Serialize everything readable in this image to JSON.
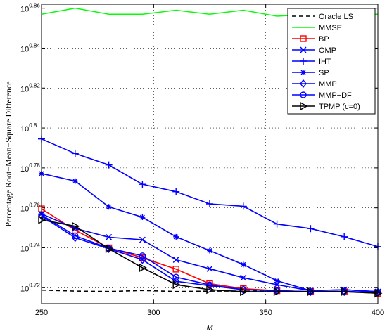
{
  "chart_data": {
    "type": "line",
    "xlabel": "M",
    "ylabel": "Percentage Root−Mean−Square Difference",
    "xlim": [
      250,
      400
    ],
    "x_ticks": [
      "250",
      "300",
      "350",
      "400"
    ],
    "y_scale": "log10",
    "ylim_exponent": [
      0.712,
      0.862
    ],
    "y_ticks": [
      {
        "base": "10",
        "exp": "0.72",
        "value": 0.72
      },
      {
        "base": "10",
        "exp": "0.74",
        "value": 0.74
      },
      {
        "base": "10",
        "exp": "0.76",
        "value": 0.76
      },
      {
        "base": "10",
        "exp": "0.78",
        "value": 0.78
      },
      {
        "base": "10",
        "exp": "0.8",
        "value": 0.8
      },
      {
        "base": "10",
        "exp": "0.82",
        "value": 0.82
      },
      {
        "base": "10",
        "exp": "0.84",
        "value": 0.84
      },
      {
        "base": "10",
        "exp": "0.86",
        "value": 0.86
      }
    ],
    "grid": true,
    "legend_position": "top-right",
    "x": [
      250,
      265,
      280,
      295,
      310,
      325,
      340,
      355,
      370,
      385,
      400
    ],
    "series": [
      {
        "name": "Oracle LS",
        "color": "#000000",
        "dash": "6,4",
        "marker": "none",
        "values": [
          0.7188,
          0.7183,
          0.7181,
          0.7186,
          0.7181,
          0.7183,
          0.7183,
          0.7181,
          0.7181,
          0.718,
          0.7178
        ]
      },
      {
        "name": "MMSE",
        "color": "#00ff00",
        "dash": "",
        "marker": "none",
        "values": [
          0.857,
          0.86,
          0.857,
          0.857,
          0.859,
          0.857,
          0.859,
          0.856,
          0.857,
          0.857,
          0.857
        ]
      },
      {
        "name": "BP",
        "color": "#ff0000",
        "dash": "",
        "marker": "square",
        "values": [
          0.7595,
          0.7488,
          0.74,
          0.735,
          0.7293,
          0.722,
          0.7195,
          0.7185,
          0.718,
          0.718,
          0.7172
        ]
      },
      {
        "name": "OMP",
        "color": "#0000ff",
        "dash": "",
        "marker": "x",
        "values": [
          0.757,
          0.7497,
          0.7453,
          0.744,
          0.734,
          0.7295,
          0.725,
          0.7215,
          0.7185,
          0.719,
          0.718
        ]
      },
      {
        "name": "IHT",
        "color": "#0000ff",
        "dash": "",
        "marker": "plus",
        "values": [
          0.7945,
          0.7872,
          0.7815,
          0.7718,
          0.7681,
          0.762,
          0.7608,
          0.7519,
          0.7496,
          0.7455,
          0.7406
        ]
      },
      {
        "name": "SP",
        "color": "#0000ff",
        "dash": "",
        "marker": "star",
        "values": [
          0.7772,
          0.7734,
          0.7605,
          0.7553,
          0.7455,
          0.7386,
          0.7316,
          0.7235,
          0.7185,
          0.719,
          0.718
        ]
      },
      {
        "name": "MMP",
        "color": "#0000ff",
        "dash": "",
        "marker": "diamond",
        "values": [
          0.756,
          0.745,
          0.7395,
          0.734,
          0.7232,
          0.721,
          0.719,
          0.7185,
          0.718,
          0.718,
          0.7178
        ]
      },
      {
        "name": "MMP−DF",
        "color": "#0000ff",
        "dash": "",
        "marker": "circle",
        "values": [
          0.7565,
          0.746,
          0.7398,
          0.736,
          0.7253,
          0.7214,
          0.719,
          0.7185,
          0.718,
          0.7182,
          0.7175
        ]
      },
      {
        "name": "TPMP (c=0)",
        "color": "#000000",
        "dash": "",
        "marker": "triangle-right",
        "values": [
          0.754,
          0.7508,
          0.7395,
          0.73,
          0.7215,
          0.719,
          0.718,
          0.718,
          0.718,
          0.718,
          0.7172
        ]
      }
    ]
  }
}
